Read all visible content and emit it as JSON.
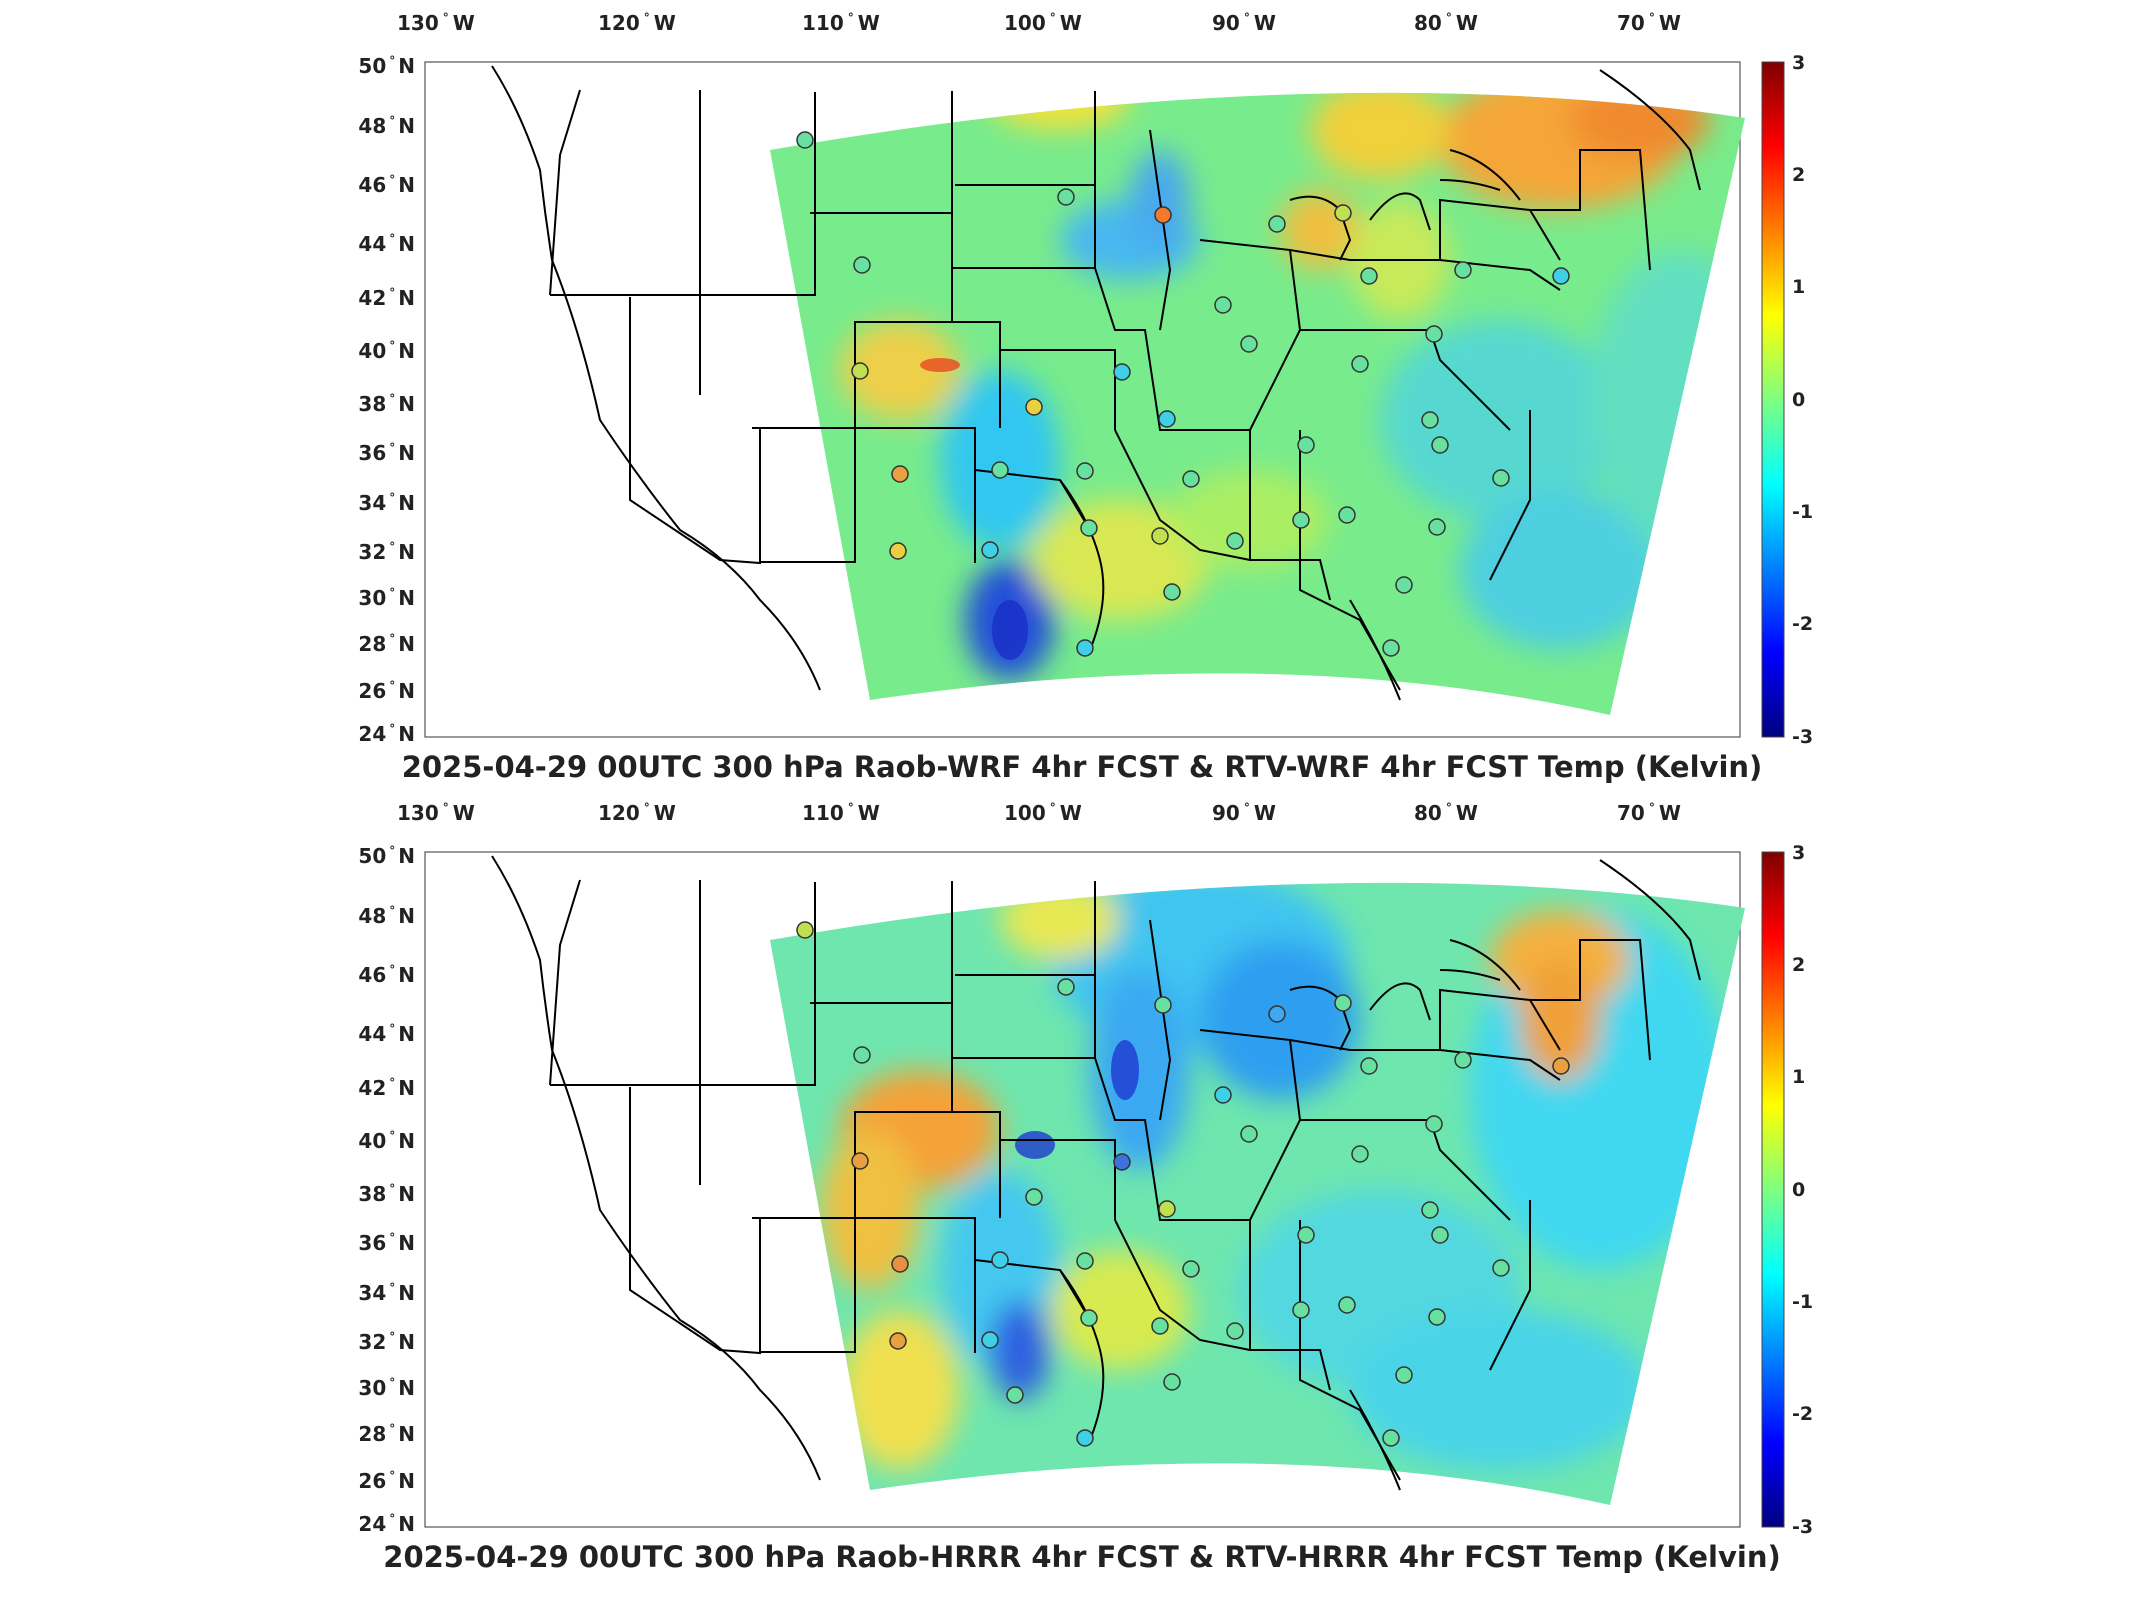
{
  "lon_labels": [
    {
      "deg": "130",
      "hemi": "W"
    },
    {
      "deg": "120",
      "hemi": "W"
    },
    {
      "deg": "110",
      "hemi": "W"
    },
    {
      "deg": "100",
      "hemi": "W"
    },
    {
      "deg": "90",
      "hemi": "W"
    },
    {
      "deg": "80",
      "hemi": "W"
    },
    {
      "deg": "70",
      "hemi": "W"
    }
  ],
  "lat_labels": [
    {
      "deg": "50",
      "hemi": "N"
    },
    {
      "deg": "48",
      "hemi": "N"
    },
    {
      "deg": "46",
      "hemi": "N"
    },
    {
      "deg": "44",
      "hemi": "N"
    },
    {
      "deg": "42",
      "hemi": "N"
    },
    {
      "deg": "40",
      "hemi": "N"
    },
    {
      "deg": "38",
      "hemi": "N"
    },
    {
      "deg": "36",
      "hemi": "N"
    },
    {
      "deg": "34",
      "hemi": "N"
    },
    {
      "deg": "32",
      "hemi": "N"
    },
    {
      "deg": "30",
      "hemi": "N"
    },
    {
      "deg": "28",
      "hemi": "N"
    },
    {
      "deg": "26",
      "hemi": "N"
    },
    {
      "deg": "24",
      "hemi": "N"
    }
  ],
  "colorbar": {
    "min": -3,
    "max": 3,
    "ticks": [
      "3",
      "2",
      "1",
      "0",
      "-1",
      "-2",
      "-3"
    ],
    "colormap": "jet"
  },
  "panels": [
    {
      "title": "2025-04-29 00UTC 300 hPa Raob-WRF 4hr FCST & RTV-WRF 4hr FCST Temp (Kelvin)"
    },
    {
      "title": "2025-04-29 00UTC 300 hPa Raob-HRRR 4hr FCST & RTV-HRRR 4hr FCST Temp (Kelvin)"
    }
  ],
  "colors": {
    "field_base": "#5fe0a0",
    "land_outline": "#000000",
    "frame": "#444444"
  }
}
